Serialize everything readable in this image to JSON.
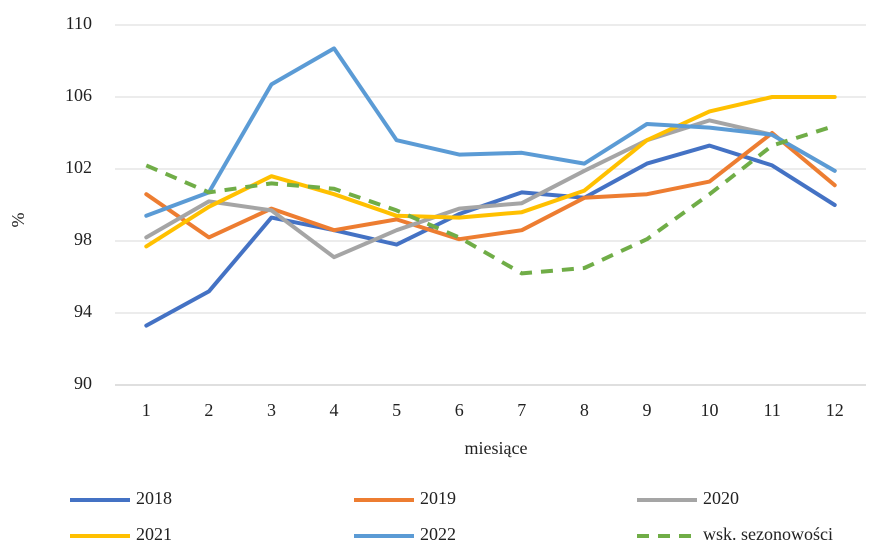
{
  "chart_data": {
    "type": "line",
    "y_label": "%",
    "x_label": "miesiące",
    "categories": [
      "1",
      "2",
      "3",
      "4",
      "5",
      "6",
      "7",
      "8",
      "9",
      "10",
      "11",
      "12"
    ],
    "ylim": [
      90,
      110
    ],
    "yticks": [
      90,
      94,
      98,
      102,
      106,
      110
    ],
    "grid": true,
    "legend": "bottom",
    "series": [
      {
        "name": "2018",
        "color": "#4472c4",
        "dashed": false,
        "values": [
          93.3,
          95.2,
          99.3,
          98.6,
          97.8,
          99.5,
          100.7,
          100.4,
          102.3,
          103.3,
          102.2,
          100.0
        ]
      },
      {
        "name": "2019",
        "color": "#ed7d31",
        "dashed": false,
        "values": [
          100.6,
          98.2,
          99.8,
          98.6,
          99.2,
          98.1,
          98.6,
          100.4,
          100.6,
          101.3,
          104.0,
          101.1
        ]
      },
      {
        "name": "2020",
        "color": "#a5a5a5",
        "dashed": false,
        "values": [
          98.2,
          100.2,
          99.7,
          97.1,
          98.6,
          99.8,
          100.1,
          101.9,
          103.6,
          104.7,
          103.9,
          101.9
        ]
      },
      {
        "name": "2021",
        "color": "#ffc000",
        "dashed": false,
        "values": [
          97.7,
          99.9,
          101.6,
          100.6,
          99.4,
          99.3,
          99.6,
          100.8,
          103.6,
          105.2,
          106.0,
          106.0
        ]
      },
      {
        "name": "2022",
        "color": "#5b9bd5",
        "dashed": false,
        "values": [
          99.4,
          100.7,
          106.7,
          108.7,
          103.6,
          102.8,
          102.9,
          102.3,
          104.5,
          104.3,
          103.9,
          101.9
        ]
      },
      {
        "name": "wsk. sezonowości",
        "color": "#70ad47",
        "dashed": true,
        "values": [
          102.2,
          100.7,
          101.2,
          100.9,
          99.7,
          98.2,
          96.2,
          96.5,
          98.1,
          100.6,
          103.3,
          104.4
        ]
      }
    ]
  }
}
